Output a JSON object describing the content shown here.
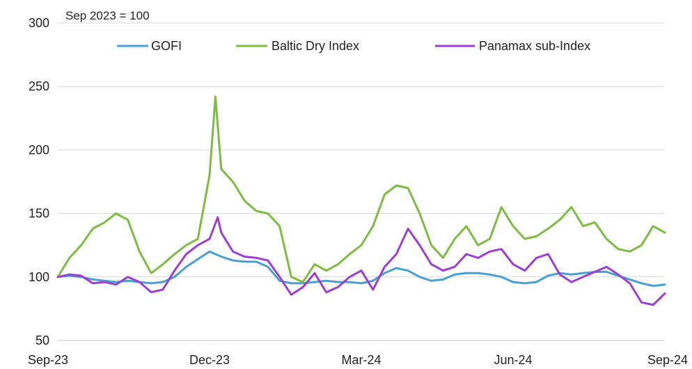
{
  "chart_data": {
    "type": "line",
    "title": "",
    "note": "Sep 2023 = 100",
    "xlabel": "",
    "ylabel": "",
    "ylim": [
      50,
      300
    ],
    "yticks": [
      50,
      100,
      150,
      200,
      250,
      300
    ],
    "xlim": [
      0,
      52
    ],
    "xticks": [
      {
        "x": 0,
        "label": "Sep-23"
      },
      {
        "x": 13,
        "label": "Dec-23"
      },
      {
        "x": 26,
        "label": "Mar-24"
      },
      {
        "x": 39,
        "label": "Jun-24"
      },
      {
        "x": 52,
        "label": "Sep-24"
      }
    ],
    "grid": true,
    "legend_position": "top",
    "series": [
      {
        "name": "GOFI",
        "color": "#4a9fd0",
        "points": [
          [
            0,
            100
          ],
          [
            1,
            101
          ],
          [
            2,
            100
          ],
          [
            3,
            98
          ],
          [
            4,
            97
          ],
          [
            5,
            96
          ],
          [
            6,
            97
          ],
          [
            7,
            96
          ],
          [
            8,
            95
          ],
          [
            9,
            96
          ],
          [
            10,
            100
          ],
          [
            11,
            108
          ],
          [
            12,
            114
          ],
          [
            13,
            120
          ],
          [
            14,
            116
          ],
          [
            15,
            113
          ],
          [
            16,
            112
          ],
          [
            17,
            112
          ],
          [
            18,
            108
          ],
          [
            19,
            97
          ],
          [
            20,
            95
          ],
          [
            21,
            95
          ],
          [
            22,
            96
          ],
          [
            23,
            97
          ],
          [
            24,
            96
          ],
          [
            25,
            96
          ],
          [
            26,
            95
          ],
          [
            27,
            97
          ],
          [
            28,
            103
          ],
          [
            29,
            107
          ],
          [
            30,
            105
          ],
          [
            31,
            100
          ],
          [
            32,
            97
          ],
          [
            33,
            98
          ],
          [
            34,
            102
          ],
          [
            35,
            103
          ],
          [
            36,
            103
          ],
          [
            37,
            102
          ],
          [
            38,
            100
          ],
          [
            39,
            96
          ],
          [
            40,
            95
          ],
          [
            41,
            96
          ],
          [
            42,
            101
          ],
          [
            43,
            103
          ],
          [
            44,
            102
          ],
          [
            45,
            103
          ],
          [
            46,
            104
          ],
          [
            47,
            104
          ],
          [
            48,
            101
          ],
          [
            49,
            98
          ],
          [
            50,
            95
          ],
          [
            51,
            93
          ],
          [
            52,
            94
          ]
        ]
      },
      {
        "name": "Baltic Dry Index",
        "color": "#7dbb42",
        "points": [
          [
            0,
            100
          ],
          [
            1,
            115
          ],
          [
            2,
            125
          ],
          [
            3,
            138
          ],
          [
            4,
            143
          ],
          [
            5,
            150
          ],
          [
            6,
            145
          ],
          [
            7,
            120
          ],
          [
            8,
            103
          ],
          [
            9,
            110
          ],
          [
            10,
            118
          ],
          [
            11,
            125
          ],
          [
            12,
            130
          ],
          [
            13,
            180
          ],
          [
            13.5,
            242
          ],
          [
            14,
            185
          ],
          [
            15,
            175
          ],
          [
            16,
            160
          ],
          [
            17,
            152
          ],
          [
            18,
            150
          ],
          [
            19,
            140
          ],
          [
            20,
            100
          ],
          [
            21,
            96
          ],
          [
            22,
            110
          ],
          [
            23,
            105
          ],
          [
            24,
            110
          ],
          [
            25,
            118
          ],
          [
            26,
            125
          ],
          [
            27,
            140
          ],
          [
            28,
            165
          ],
          [
            29,
            172
          ],
          [
            30,
            170
          ],
          [
            31,
            150
          ],
          [
            32,
            125
          ],
          [
            33,
            115
          ],
          [
            34,
            130
          ],
          [
            35,
            140
          ],
          [
            36,
            125
          ],
          [
            37,
            130
          ],
          [
            38,
            155
          ],
          [
            39,
            140
          ],
          [
            40,
            130
          ],
          [
            41,
            132
          ],
          [
            42,
            138
          ],
          [
            43,
            145
          ],
          [
            44,
            155
          ],
          [
            45,
            140
          ],
          [
            46,
            143
          ],
          [
            47,
            130
          ],
          [
            48,
            122
          ],
          [
            49,
            120
          ],
          [
            50,
            125
          ],
          [
            51,
            140
          ],
          [
            52,
            135
          ]
        ]
      },
      {
        "name": "Panamax sub-Index",
        "color": "#9b3fcf",
        "points": [
          [
            0,
            100
          ],
          [
            1,
            102
          ],
          [
            2,
            101
          ],
          [
            3,
            95
          ],
          [
            4,
            96
          ],
          [
            5,
            94
          ],
          [
            6,
            100
          ],
          [
            7,
            96
          ],
          [
            8,
            88
          ],
          [
            9,
            90
          ],
          [
            10,
            105
          ],
          [
            11,
            118
          ],
          [
            12,
            125
          ],
          [
            13,
            130
          ],
          [
            13.7,
            147
          ],
          [
            14,
            135
          ],
          [
            15,
            120
          ],
          [
            16,
            116
          ],
          [
            17,
            115
          ],
          [
            18,
            113
          ],
          [
            19,
            100
          ],
          [
            20,
            86
          ],
          [
            21,
            92
          ],
          [
            22,
            103
          ],
          [
            23,
            88
          ],
          [
            24,
            92
          ],
          [
            25,
            100
          ],
          [
            26,
            105
          ],
          [
            27,
            90
          ],
          [
            28,
            108
          ],
          [
            29,
            118
          ],
          [
            30,
            138
          ],
          [
            31,
            125
          ],
          [
            32,
            110
          ],
          [
            33,
            105
          ],
          [
            34,
            108
          ],
          [
            35,
            118
          ],
          [
            36,
            115
          ],
          [
            37,
            120
          ],
          [
            38,
            122
          ],
          [
            39,
            110
          ],
          [
            40,
            105
          ],
          [
            41,
            115
          ],
          [
            42,
            118
          ],
          [
            43,
            102
          ],
          [
            44,
            96
          ],
          [
            45,
            100
          ],
          [
            46,
            104
          ],
          [
            47,
            108
          ],
          [
            48,
            102
          ],
          [
            49,
            95
          ],
          [
            50,
            80
          ],
          [
            51,
            78
          ],
          [
            52,
            87
          ]
        ]
      }
    ]
  }
}
